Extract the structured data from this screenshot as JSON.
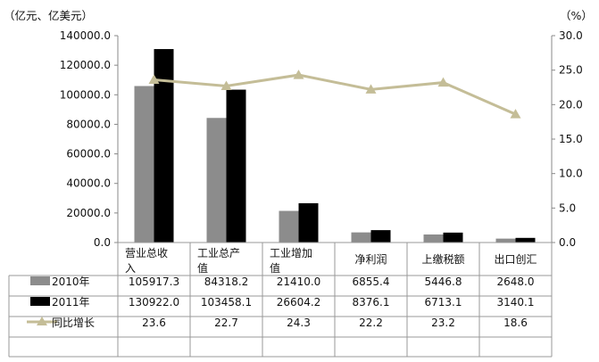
{
  "chart_data": {
    "type": "bar",
    "left_unit_label": "（亿元、亿美元）",
    "right_unit_label": "（%）",
    "categories": [
      [
        "营业总收",
        "入"
      ],
      [
        "工业总产",
        "值"
      ],
      [
        "工业增加",
        "值"
      ],
      [
        "净利润"
      ],
      [
        "上缴税额"
      ],
      [
        "出口创汇"
      ]
    ],
    "y_left": {
      "min": 0,
      "max": 140000,
      "step": 20000,
      "tick_decimals": 1
    },
    "y_right": {
      "min": 0,
      "max": 30,
      "step": 5,
      "tick_decimals": 1
    },
    "series": [
      {
        "name": "2010年",
        "kind": "bar",
        "axis": "left",
        "color": "#8c8c8c",
        "values": [
          105917.3,
          84318.2,
          21410.0,
          6855.4,
          5446.8,
          2648.0
        ],
        "labels": [
          "105917.3",
          "84318.2",
          "21410.0",
          "6855.4",
          "5446.8",
          "2648.0"
        ]
      },
      {
        "name": "2011年",
        "kind": "bar",
        "axis": "left",
        "color": "#000000",
        "values": [
          130922.0,
          103458.1,
          26604.2,
          8376.1,
          6713.1,
          3140.1
        ],
        "labels": [
          "130922.0",
          "103458.1",
          "26604.2",
          "8376.1",
          "6713.1",
          "3140.1"
        ]
      },
      {
        "name": "同比增长",
        "kind": "line",
        "axis": "right",
        "color": "#c4bd97",
        "values": [
          23.6,
          22.7,
          24.3,
          22.2,
          23.2,
          18.6
        ],
        "labels": [
          "23.6",
          "22.7",
          "24.3",
          "22.2",
          "23.2",
          "18.6"
        ]
      }
    ],
    "grid": false,
    "legend": "table-left"
  }
}
